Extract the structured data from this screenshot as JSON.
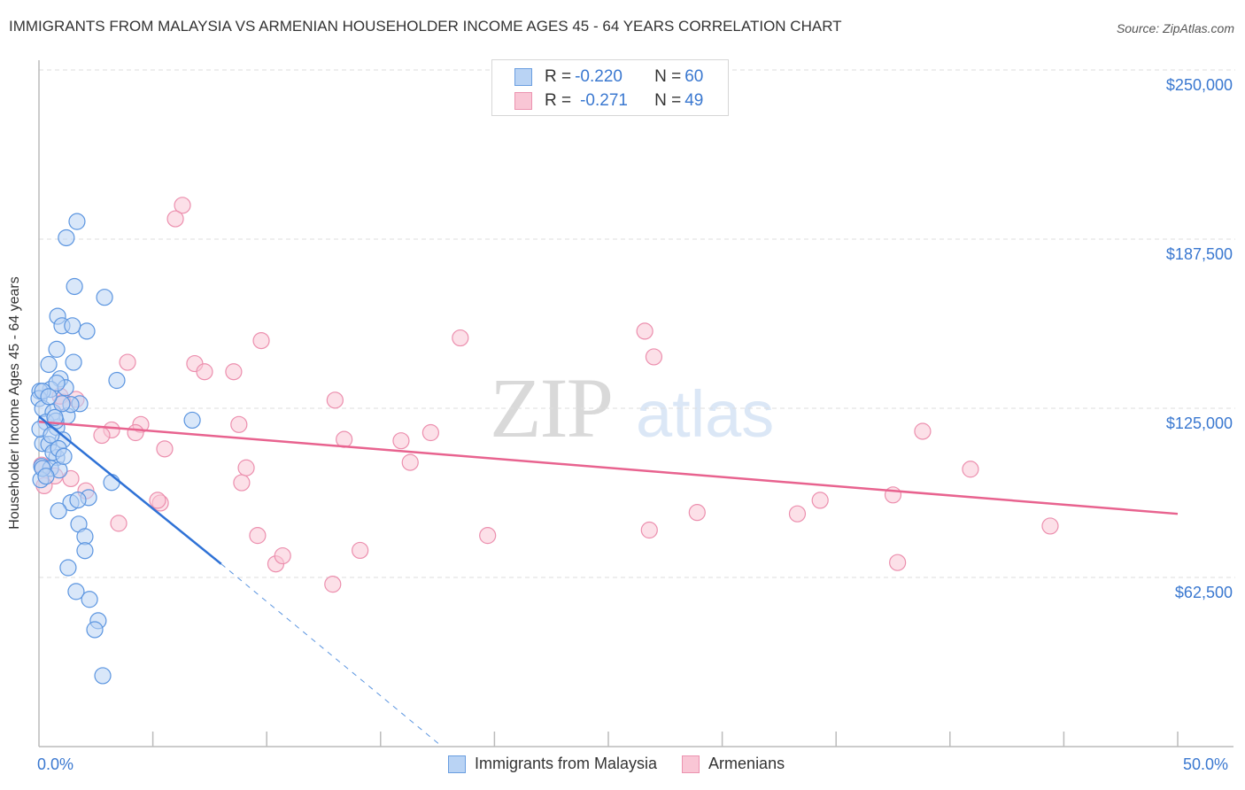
{
  "header": {
    "title": "IMMIGRANTS FROM MALAYSIA VS ARMENIAN HOUSEHOLDER INCOME AGES 45 - 64 YEARS CORRELATION CHART",
    "source": "Source: ZipAtlas.com"
  },
  "legend": {
    "series1": {
      "r_label": "R = ",
      "r_value": "-0.220",
      "n_label": "N = ",
      "n_value": "60"
    },
    "series2": {
      "r_label": "R = ",
      "r_value": "-0.271",
      "n_label": "N = ",
      "n_value": "49"
    }
  },
  "bottom_legend": {
    "series1": "Immigrants from Malaysia",
    "series2": "Armenians"
  },
  "axes": {
    "ylabel": "Householder Income Ages 45 - 64 years",
    "yticks": [
      "$250,000",
      "$187,500",
      "$125,000",
      "$62,500"
    ],
    "xticks": [
      "0.0%",
      "50.0%"
    ]
  },
  "watermark": {
    "part1": "ZIP",
    "part2": "atlas"
  },
  "colors": {
    "blue": "#3a78d0",
    "blue_fill": "#b9d3f4",
    "pink": "#e8638f",
    "pink_fill": "#f9c6d5",
    "grid": "#dddddd"
  },
  "chart_data": {
    "type": "scatter",
    "title": "IMMIGRANTS FROM MALAYSIA VS ARMENIAN HOUSEHOLDER INCOME AGES 45 - 64 YEARS CORRELATION CHART",
    "xlabel": "",
    "ylabel": "Householder Income Ages 45 - 64 years",
    "xlim": [
      0,
      50
    ],
    "ylim": [
      0,
      255000
    ],
    "x_unit": "%",
    "yticks": [
      62500,
      125000,
      187500,
      250000
    ],
    "grid": true,
    "legend_position": "top-center",
    "series": [
      {
        "name": "Immigrants from Malaysia",
        "color": "#3a78d0",
        "R": -0.22,
        "N": 60,
        "trendline": {
          "x": [
            0,
            8.0
          ],
          "y": [
            122000,
            67500
          ],
          "extrapolated_to": [
            17.7,
            0
          ]
        },
        "points": [
          [
            1.67,
            194000
          ],
          [
            1.2,
            188000
          ],
          [
            1.56,
            170000
          ],
          [
            2.88,
            166000
          ],
          [
            0.82,
            159000
          ],
          [
            1.01,
            155500
          ],
          [
            2.1,
            153500
          ],
          [
            1.47,
            155500
          ],
          [
            0.78,
            146800
          ],
          [
            1.52,
            142000
          ],
          [
            0.43,
            141200
          ],
          [
            0.93,
            135900
          ],
          [
            0.51,
            132000
          ],
          [
            0.04,
            131300
          ],
          [
            1.17,
            132600
          ],
          [
            1.79,
            126700
          ],
          [
            0.0,
            128600
          ],
          [
            3.42,
            135300
          ],
          [
            0.16,
            124900
          ],
          [
            0.62,
            123500
          ],
          [
            1.24,
            122200
          ],
          [
            0.78,
            117900
          ],
          [
            0.31,
            119900
          ],
          [
            0.16,
            112000
          ],
          [
            1.05,
            113300
          ],
          [
            0.78,
            106800
          ],
          [
            0.12,
            103500
          ],
          [
            0.51,
            102800
          ],
          [
            0.89,
            102200
          ],
          [
            3.19,
            97600
          ],
          [
            2.18,
            92000
          ],
          [
            1.4,
            90100
          ],
          [
            0.86,
            87100
          ],
          [
            1.71,
            91100
          ],
          [
            1.75,
            82200
          ],
          [
            2.02,
            77600
          ],
          [
            2.02,
            72400
          ],
          [
            1.28,
            66100
          ],
          [
            1.63,
            57300
          ],
          [
            2.22,
            54400
          ],
          [
            2.6,
            46500
          ],
          [
            2.45,
            43200
          ],
          [
            2.8,
            26200
          ],
          [
            6.73,
            120600
          ],
          [
            0.08,
            98600
          ],
          [
            0.43,
            111700
          ],
          [
            0.16,
            102800
          ],
          [
            0.74,
            120300
          ],
          [
            0.04,
            117300
          ],
          [
            0.31,
            99900
          ],
          [
            0.62,
            108700
          ],
          [
            1.4,
            126400
          ],
          [
            1.01,
            126700
          ],
          [
            0.16,
            131300
          ],
          [
            0.43,
            129300
          ],
          [
            0.7,
            121600
          ],
          [
            0.54,
            115100
          ],
          [
            0.86,
            110100
          ],
          [
            1.09,
            107200
          ],
          [
            0.78,
            134300
          ]
        ]
      },
      {
        "name": "Armenians",
        "color": "#e8638f",
        "R": -0.271,
        "N": 49,
        "trendline": {
          "x": [
            0,
            50
          ],
          "y": [
            120000,
            86000
          ]
        },
        "points": [
          [
            6.3,
            200000
          ],
          [
            5.99,
            195000
          ],
          [
            3.89,
            142000
          ],
          [
            6.84,
            141500
          ],
          [
            7.27,
            138500
          ],
          [
            8.55,
            138500
          ],
          [
            9.76,
            150000
          ],
          [
            13.0,
            128000
          ],
          [
            18.5,
            151000
          ],
          [
            26.6,
            153500
          ],
          [
            27.0,
            144000
          ],
          [
            4.47,
            119000
          ],
          [
            3.19,
            117000
          ],
          [
            2.76,
            115000
          ],
          [
            4.24,
            116000
          ],
          [
            5.52,
            110000
          ],
          [
            8.78,
            119000
          ],
          [
            13.4,
            113500
          ],
          [
            15.9,
            113000
          ],
          [
            17.2,
            116000
          ],
          [
            16.3,
            105000
          ],
          [
            9.1,
            103000
          ],
          [
            8.9,
            97500
          ],
          [
            5.33,
            90000
          ],
          [
            5.21,
            91000
          ],
          [
            2.06,
            94500
          ],
          [
            3.5,
            82500
          ],
          [
            9.6,
            78000
          ],
          [
            10.4,
            67500
          ],
          [
            10.7,
            70500
          ],
          [
            12.9,
            60000
          ],
          [
            14.1,
            72500
          ],
          [
            19.7,
            78000
          ],
          [
            26.8,
            80000
          ],
          [
            28.9,
            86500
          ],
          [
            33.3,
            86000
          ],
          [
            34.3,
            91000
          ],
          [
            37.5,
            93000
          ],
          [
            37.7,
            68000
          ],
          [
            38.8,
            116500
          ],
          [
            40.9,
            102500
          ],
          [
            44.4,
            81500
          ],
          [
            0.7,
            100000
          ],
          [
            0.12,
            104000
          ],
          [
            1.4,
            99000
          ],
          [
            1.63,
            128300
          ],
          [
            1.05,
            127300
          ],
          [
            0.23,
            96400
          ],
          [
            0.93,
            129500
          ]
        ]
      }
    ]
  }
}
